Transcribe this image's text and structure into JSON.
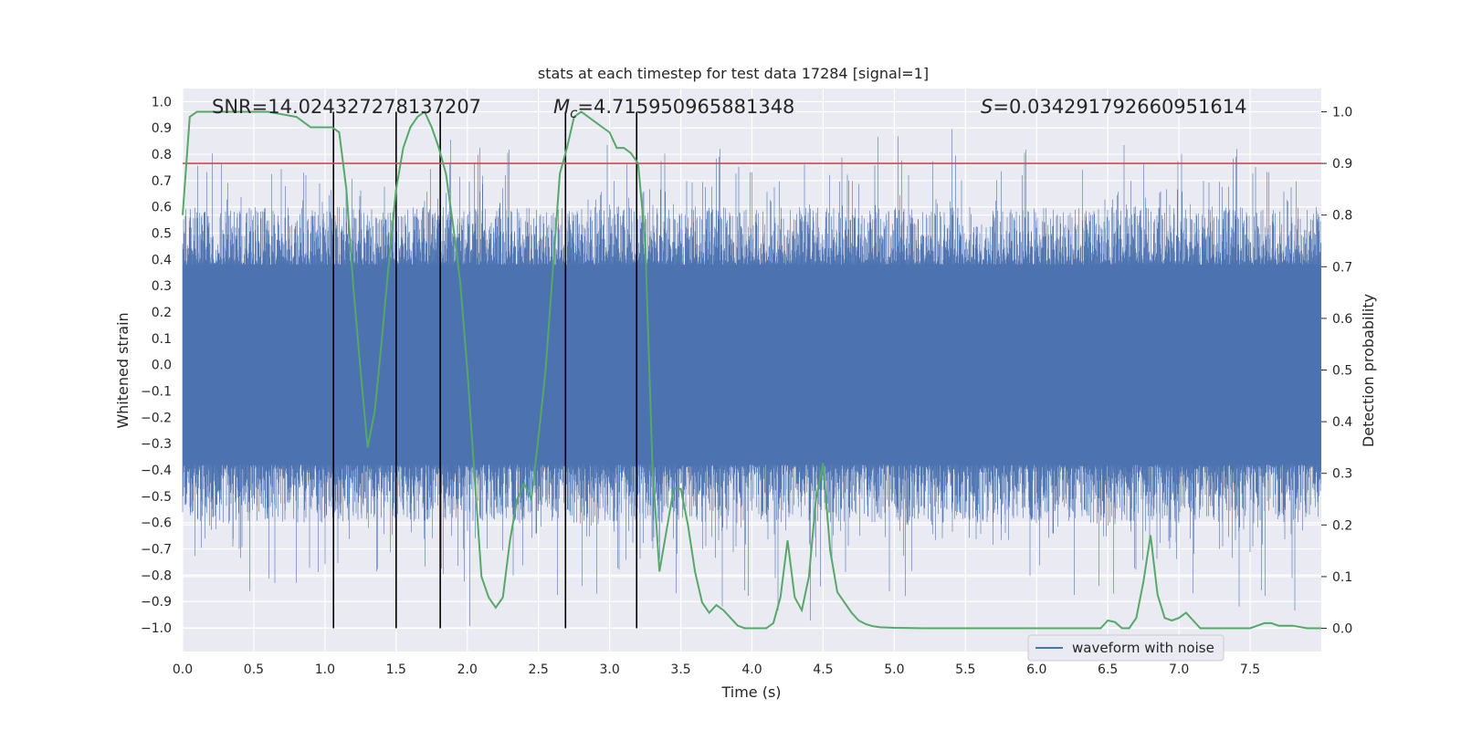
{
  "chart_data": {
    "type": "line",
    "title": "stats at each timestep for test data 17284 [signal=1]",
    "xlabel": "Time (s)",
    "ylabel": "Whitened strain",
    "y2label": "Detection probability",
    "xlim": [
      0.0,
      8.0
    ],
    "ylim": [
      -1.09,
      1.05
    ],
    "y2lim": [
      -0.045,
      1.045
    ],
    "xticks": [
      "0.0",
      "0.5",
      "1.0",
      "1.5",
      "2.0",
      "2.5",
      "3.0",
      "3.5",
      "4.0",
      "4.5",
      "5.0",
      "5.5",
      "6.0",
      "6.5",
      "7.0",
      "7.5"
    ],
    "yticks": [
      "1.0",
      "0.9",
      "0.8",
      "0.7",
      "0.6",
      "0.5",
      "0.4",
      "0.3",
      "0.2",
      "0.1",
      "0.0",
      "-0.1",
      "-0.2",
      "-0.3",
      "-0.4",
      "-0.5",
      "-0.6",
      "-0.7",
      "-0.8",
      "-0.9",
      "-1.0"
    ],
    "y2ticks": [
      "1.0",
      "0.9",
      "0.8",
      "0.7",
      "0.6",
      "0.5",
      "0.4",
      "0.3",
      "0.2",
      "0.1",
      "0.0"
    ],
    "annotations": {
      "snr": "SNR=14.024327278137207",
      "mc_symbol": "M",
      "mc_sub": "c",
      "mc_value": "=4.715950965881348",
      "s_symbol": "S",
      "s_value": "=0.034291792660951614"
    },
    "legend": {
      "label": "waveform with noise",
      "position": "lower-right"
    },
    "threshold": 0.9,
    "event_lines_x": [
      1.06,
      1.5,
      1.81,
      2.69,
      3.19
    ],
    "waveform": {
      "name": "waveform with noise",
      "core_amplitude": 0.38,
      "max_amplitude": 0.92,
      "seed": 17284
    },
    "detection_probability": {
      "name": "detection probability",
      "x": [
        0.0,
        0.05,
        0.1,
        0.15,
        0.2,
        0.3,
        0.4,
        0.5,
        0.6,
        0.7,
        0.8,
        0.9,
        1.0,
        1.05,
        1.1,
        1.15,
        1.2,
        1.25,
        1.3,
        1.35,
        1.4,
        1.45,
        1.5,
        1.55,
        1.6,
        1.65,
        1.7,
        1.75,
        1.8,
        1.85,
        1.9,
        1.95,
        2.0,
        2.05,
        2.1,
        2.15,
        2.2,
        2.25,
        2.3,
        2.35,
        2.4,
        2.45,
        2.5,
        2.55,
        2.6,
        2.65,
        2.7,
        2.75,
        2.8,
        2.85,
        2.9,
        2.95,
        3.0,
        3.05,
        3.1,
        3.15,
        3.2,
        3.25,
        3.3,
        3.35,
        3.4,
        3.45,
        3.5,
        3.55,
        3.6,
        3.65,
        3.7,
        3.75,
        3.8,
        3.85,
        3.9,
        3.95,
        4.0,
        4.05,
        4.1,
        4.15,
        4.2,
        4.25,
        4.3,
        4.35,
        4.4,
        4.45,
        4.5,
        4.55,
        4.6,
        4.65,
        4.7,
        4.75,
        4.8,
        4.85,
        4.9,
        5.0,
        5.2,
        5.5,
        5.8,
        6.0,
        6.3,
        6.45,
        6.5,
        6.55,
        6.6,
        6.65,
        6.7,
        6.75,
        6.8,
        6.85,
        6.9,
        6.95,
        7.0,
        7.05,
        7.1,
        7.15,
        7.2,
        7.3,
        7.4,
        7.5,
        7.55,
        7.6,
        7.65,
        7.7,
        7.8,
        7.9,
        8.0
      ],
      "y": [
        0.8,
        0.99,
        1.0,
        1.0,
        1.0,
        1.0,
        1.0,
        1.0,
        1.0,
        0.995,
        0.99,
        0.97,
        0.97,
        0.97,
        0.96,
        0.85,
        0.66,
        0.5,
        0.35,
        0.42,
        0.56,
        0.71,
        0.85,
        0.93,
        0.97,
        0.99,
        1.0,
        0.97,
        0.93,
        0.88,
        0.78,
        0.67,
        0.5,
        0.3,
        0.1,
        0.06,
        0.04,
        0.06,
        0.17,
        0.25,
        0.28,
        0.25,
        0.37,
        0.5,
        0.69,
        0.88,
        0.93,
        0.99,
        1.0,
        0.99,
        0.98,
        0.97,
        0.96,
        0.93,
        0.93,
        0.92,
        0.9,
        0.75,
        0.32,
        0.11,
        0.19,
        0.27,
        0.27,
        0.2,
        0.11,
        0.05,
        0.03,
        0.045,
        0.035,
        0.02,
        0.005,
        0.0,
        0.0,
        0.0,
        0.0,
        0.01,
        0.06,
        0.17,
        0.06,
        0.035,
        0.1,
        0.25,
        0.32,
        0.15,
        0.07,
        0.05,
        0.03,
        0.015,
        0.008,
        0.004,
        0.002,
        0.001,
        0.0,
        0.0,
        0.0,
        0.0,
        0.0,
        0.0,
        0.015,
        0.012,
        0.0,
        0.0,
        0.02,
        0.09,
        0.18,
        0.065,
        0.02,
        0.015,
        0.02,
        0.03,
        0.015,
        0.0,
        0.0,
        0.0,
        0.0,
        0.0,
        0.005,
        0.01,
        0.01,
        0.005,
        0.005,
        0.0,
        0.0
      ]
    }
  },
  "colors": {
    "background": "#eaeaf2",
    "grid": "#ffffff",
    "waveform": "#4c72b0",
    "probability": "#55a868",
    "threshold": "#c44e52",
    "event_line": "#000000"
  }
}
